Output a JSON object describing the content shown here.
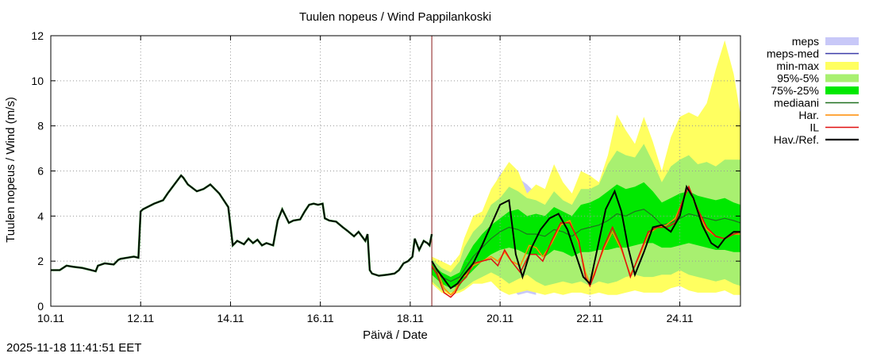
{
  "timestamp": "2025-11-18 11:41:51 EET",
  "colors": {
    "meps": "#c8c8f8",
    "meps_med": "#3c3ca8",
    "minmax": "#ffff60",
    "p95_5": "#a8f070",
    "p75_25": "#00e800",
    "median": "#207020",
    "har": "#ff8c00",
    "il": "#e01010",
    "hav": "#000000",
    "now_line": "#8b1a1a",
    "grid": "#999999"
  },
  "chart_data": {
    "type": "line",
    "title": "Tuulen nopeus / Wind  Pappilankoski",
    "xlabel": "Päivä / Date",
    "ylabel": "Tuulen nopeus / Wind (m/s)",
    "xlim": [
      0,
      15.35
    ],
    "ylim": [
      0,
      12
    ],
    "x_unit": "days since 10.11 00:00",
    "xticks": [
      {
        "x": 0,
        "label": "10.11"
      },
      {
        "x": 2,
        "label": "12.11"
      },
      {
        "x": 4,
        "label": "14.11"
      },
      {
        "x": 6,
        "label": "16.11"
      },
      {
        "x": 8,
        "label": "18.11"
      },
      {
        "x": 10,
        "label": "20.11"
      },
      {
        "x": 12,
        "label": "22.11"
      },
      {
        "x": 14,
        "label": "24.11"
      }
    ],
    "yticks": [
      0,
      2,
      4,
      6,
      8,
      10,
      12
    ],
    "now_x": 8.48,
    "legend": [
      {
        "key": "meps",
        "label": "meps",
        "style": "box"
      },
      {
        "key": "meps_med",
        "label": "meps-med",
        "style": "line"
      },
      {
        "key": "minmax",
        "label": "min-max",
        "style": "box"
      },
      {
        "key": "p95_5",
        "label": "95%-5%",
        "style": "box"
      },
      {
        "key": "p75_25",
        "label": "75%-25%",
        "style": "box"
      },
      {
        "key": "median",
        "label": "mediaani",
        "style": "line"
      },
      {
        "key": "har",
        "label": "Har.",
        "style": "line"
      },
      {
        "key": "il",
        "label": "IL",
        "style": "line"
      },
      {
        "key": "hav",
        "label": "Hav./Ref.",
        "style": "thickline"
      }
    ],
    "observed": {
      "name": "Hav./Ref.",
      "x": [
        0,
        0.2,
        0.35,
        0.5,
        0.7,
        0.9,
        1.0,
        1.05,
        1.2,
        1.4,
        1.5,
        1.55,
        1.7,
        1.85,
        1.95,
        2.0,
        2.05,
        2.3,
        2.5,
        2.6,
        2.75,
        2.9,
        2.95,
        3.05,
        3.25,
        3.4,
        3.55,
        3.75,
        3.95,
        4.05,
        4.15,
        4.3,
        4.4,
        4.5,
        4.6,
        4.7,
        4.8,
        4.95,
        5.05,
        5.15,
        5.3,
        5.4,
        5.55,
        5.65,
        5.75,
        5.85,
        5.95,
        6.05,
        6.1,
        6.2,
        6.35,
        6.5,
        6.6,
        6.75,
        6.85,
        7.0,
        7.05,
        7.1,
        7.15,
        7.3,
        7.5,
        7.65,
        7.75,
        7.85,
        7.95,
        8.05,
        8.1,
        8.2,
        8.3,
        8.38,
        8.43,
        8.48
      ],
      "y": [
        1.6,
        1.6,
        1.8,
        1.75,
        1.7,
        1.6,
        1.55,
        1.8,
        1.9,
        1.85,
        2.05,
        2.1,
        2.15,
        2.2,
        2.15,
        4.2,
        4.3,
        4.55,
        4.7,
        5.0,
        5.4,
        5.8,
        5.7,
        5.4,
        5.1,
        5.2,
        5.4,
        5.0,
        4.4,
        2.7,
        2.9,
        2.75,
        3.0,
        2.8,
        2.95,
        2.7,
        2.8,
        2.7,
        3.8,
        4.3,
        3.7,
        3.8,
        3.85,
        4.2,
        4.5,
        4.55,
        4.5,
        4.55,
        3.9,
        3.8,
        3.75,
        3.5,
        3.35,
        3.1,
        3.3,
        2.9,
        3.2,
        1.6,
        1.45,
        1.35,
        1.4,
        1.45,
        1.6,
        1.9,
        2.0,
        2.2,
        3.0,
        2.5,
        2.9,
        2.8,
        2.7,
        3.2
      ]
    },
    "forecast": {
      "x": [
        8.48,
        8.7,
        8.9,
        9.1,
        9.2,
        9.4,
        9.6,
        9.8,
        10.0,
        10.2,
        10.4,
        10.6,
        10.8,
        11.0,
        11.2,
        11.4,
        11.6,
        11.8,
        12.0,
        12.2,
        12.4,
        12.6,
        12.8,
        13.0,
        13.2,
        13.4,
        13.6,
        13.8,
        14.0,
        14.2,
        14.4,
        14.6,
        14.8,
        15.0,
        15.2,
        15.35
      ],
      "min": [
        1.0,
        0.6,
        0.5,
        0.6,
        0.7,
        1.0,
        1.0,
        1.1,
        0.7,
        0.5,
        0.6,
        0.7,
        0.6,
        0.5,
        0.6,
        0.5,
        0.6,
        0.6,
        0.5,
        0.6,
        0.5,
        0.5,
        0.6,
        0.7,
        0.6,
        0.6,
        0.6,
        0.8,
        0.9,
        0.7,
        0.6,
        0.6,
        0.6,
        0.7,
        0.5,
        0.5
      ],
      "max": [
        2.2,
        2.0,
        1.8,
        2.3,
        3.0,
        4.0,
        4.2,
        5.2,
        5.8,
        6.4,
        6.0,
        5.0,
        5.4,
        5.2,
        6.3,
        5.5,
        5.0,
        6.0,
        5.8,
        5.5,
        6.7,
        8.5,
        7.8,
        7.2,
        8.4,
        7.3,
        6.0,
        7.5,
        8.4,
        8.6,
        8.4,
        9.0,
        10.5,
        11.8,
        10.3,
        8.5
      ],
      "p95": [
        2.1,
        1.7,
        1.5,
        2.0,
        2.6,
        3.3,
        3.7,
        4.5,
        4.8,
        5.3,
        5.1,
        4.8,
        4.7,
        4.5,
        5.1,
        4.7,
        4.5,
        5.2,
        5.2,
        5.4,
        6.3,
        6.9,
        6.7,
        6.6,
        7.2,
        6.4,
        5.5,
        6.2,
        6.5,
        6.7,
        6.3,
        6.4,
        6.2,
        6.5,
        6.5,
        6.5
      ],
      "p75": [
        1.9,
        1.5,
        1.3,
        1.5,
        2.0,
        2.7,
        3.2,
        3.6,
        3.9,
        4.2,
        4.3,
        4.0,
        4.1,
        4.0,
        4.4,
        4.2,
        4.0,
        4.5,
        4.6,
        4.8,
        5.1,
        5.4,
        5.2,
        5.3,
        5.5,
        5.1,
        4.6,
        4.8,
        5.0,
        5.1,
        4.9,
        4.8,
        4.7,
        4.8,
        4.6,
        4.5
      ],
      "p25": [
        1.4,
        1.0,
        0.8,
        0.9,
        1.2,
        1.6,
        2.0,
        2.3,
        2.5,
        2.6,
        2.5,
        2.3,
        2.3,
        2.2,
        2.5,
        2.4,
        2.2,
        2.4,
        2.4,
        2.5,
        2.5,
        2.6,
        2.6,
        2.7,
        2.8,
        2.8,
        2.6,
        2.6,
        2.7,
        2.8,
        2.7,
        2.6,
        2.5,
        2.5,
        2.4,
        2.4
      ],
      "p5": [
        1.1,
        0.7,
        0.6,
        0.7,
        0.8,
        1.1,
        1.3,
        1.5,
        1.3,
        1.0,
        1.2,
        1.4,
        1.1,
        0.9,
        1.0,
        1.1,
        1.0,
        1.1,
        0.9,
        1.1,
        1.0,
        1.1,
        1.3,
        1.4,
        1.3,
        1.3,
        1.4,
        1.4,
        1.6,
        1.4,
        1.3,
        1.2,
        1.1,
        1.2,
        1.0,
        0.9
      ],
      "median": [
        1.7,
        1.3,
        1.1,
        1.3,
        1.6,
        2.2,
        2.6,
        3.0,
        3.3,
        3.5,
        3.4,
        3.2,
        3.2,
        3.1,
        3.4,
        3.3,
        3.1,
        3.4,
        3.5,
        3.6,
        3.8,
        4.1,
        4.0,
        4.2,
        4.3,
        4.0,
        3.6,
        3.7,
        3.9,
        4.1,
        4.0,
        3.9,
        3.8,
        3.9,
        3.8,
        3.7
      ],
      "meps_min": [
        1.6,
        1.4,
        1.2,
        1.3,
        1.5,
        2.0,
        2.3,
        2.0,
        1.4,
        0.9,
        0.5,
        0.6,
        0.5
      ],
      "meps_max": [
        2.0,
        1.8,
        1.6,
        1.9,
        2.4,
        3.3,
        3.9,
        5.0,
        5.9,
        6.0,
        5.7,
        5.4,
        5.0
      ]
    },
    "har": {
      "name": "Har.",
      "x": [
        8.48,
        8.6,
        8.75,
        8.9,
        9.0,
        9.1,
        9.25,
        9.4,
        9.6,
        9.8,
        9.95,
        10.1,
        10.25,
        10.45,
        10.65,
        10.8,
        10.95,
        11.15,
        11.35,
        11.55,
        11.75,
        11.9,
        12.0,
        12.1,
        12.3,
        12.5,
        12.7,
        12.9,
        13.1,
        13.3,
        13.5,
        13.7,
        13.9,
        14.05,
        14.2,
        14.4,
        14.6,
        14.8,
        15.0,
        15.2,
        15.35
      ],
      "y": [
        2.0,
        1.6,
        0.8,
        0.5,
        0.7,
        1.2,
        1.4,
        1.8,
        2.0,
        2.2,
        2.0,
        2.4,
        2.0,
        1.8,
        2.7,
        2.6,
        2.2,
        2.8,
        3.6,
        3.8,
        2.8,
        1.5,
        1.0,
        1.5,
        2.5,
        3.3,
        2.5,
        1.4,
        2.2,
        3.2,
        3.5,
        3.6,
        3.9,
        4.6,
        5.3,
        4.2,
        3.4,
        3.1,
        3.0,
        3.2,
        3.2
      ]
    },
    "il": {
      "name": "IL",
      "x": [
        8.48,
        8.6,
        8.75,
        8.9,
        9.0,
        9.1,
        9.25,
        9.4,
        9.6,
        9.8,
        9.95,
        10.1,
        10.25,
        10.45,
        10.65,
        10.8,
        10.95,
        11.15,
        11.35,
        11.55,
        11.75,
        11.9,
        12.0,
        12.1,
        12.3,
        12.5,
        12.7,
        12.9,
        13.1,
        13.3,
        13.5,
        13.7,
        13.9,
        14.05,
        14.2,
        14.4,
        14.6,
        14.8,
        15.0,
        15.2,
        15.35
      ],
      "y": [
        1.8,
        1.4,
        0.6,
        0.4,
        0.6,
        1.0,
        1.3,
        1.9,
        2.0,
        2.1,
        1.8,
        2.5,
        2.0,
        1.5,
        2.3,
        2.3,
        2.0,
        2.9,
        3.7,
        3.7,
        2.9,
        1.3,
        0.9,
        1.4,
        2.6,
        3.5,
        2.6,
        1.3,
        2.3,
        3.3,
        3.5,
        3.5,
        3.7,
        4.6,
        5.3,
        4.3,
        3.5,
        3.1,
        3.0,
        3.2,
        3.3
      ]
    },
    "hav_forecast": {
      "name": "Hav./Ref.",
      "x": [
        8.48,
        8.6,
        8.75,
        8.9,
        9.05,
        9.2,
        9.4,
        9.6,
        9.8,
        10.0,
        10.2,
        10.35,
        10.5,
        10.7,
        10.9,
        11.1,
        11.3,
        11.5,
        11.7,
        11.85,
        12.0,
        12.15,
        12.35,
        12.55,
        12.7,
        12.85,
        13.0,
        13.2,
        13.4,
        13.6,
        13.8,
        14.0,
        14.15,
        14.3,
        14.5,
        14.7,
        14.85,
        15.0,
        15.2,
        15.35
      ],
      "y": [
        2.0,
        1.6,
        1.2,
        0.8,
        1.0,
        1.4,
        1.9,
        2.7,
        3.6,
        4.5,
        4.7,
        2.3,
        1.3,
        2.6,
        3.4,
        3.9,
        4.1,
        3.4,
        2.2,
        1.3,
        1.0,
        2.4,
        4.3,
        5.1,
        4.2,
        2.6,
        1.4,
        2.4,
        3.5,
        3.6,
        3.3,
        4.0,
        5.3,
        4.8,
        3.6,
        2.8,
        2.6,
        3.0,
        3.3,
        3.3
      ]
    }
  }
}
